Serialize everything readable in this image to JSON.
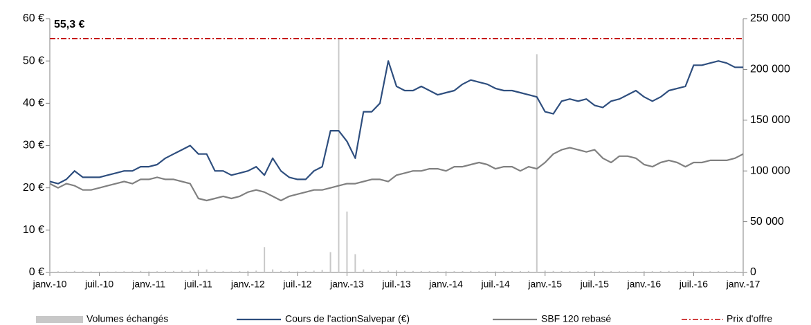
{
  "chart_data": {
    "type": "line",
    "categories": [
      "janv.-10",
      null,
      null,
      null,
      null,
      null,
      "juil.-10",
      null,
      null,
      null,
      null,
      null,
      "janv.-11",
      null,
      null,
      null,
      null,
      null,
      "juil.-11",
      null,
      null,
      null,
      null,
      null,
      "janv.-12",
      null,
      null,
      null,
      null,
      null,
      "juil.-12",
      null,
      null,
      null,
      null,
      null,
      "janv.-13",
      null,
      null,
      null,
      null,
      null,
      "juil.-13",
      null,
      null,
      null,
      null,
      null,
      "janv.-14",
      null,
      null,
      null,
      null,
      null,
      "juil.-14",
      null,
      null,
      null,
      null,
      null,
      "janv.-15",
      null,
      null,
      null,
      null,
      null,
      "juil.-15",
      null,
      null,
      null,
      null,
      null,
      "janv.-16",
      null,
      null,
      null,
      null,
      null,
      "juil.-16",
      null,
      null,
      null,
      null,
      null,
      "janv.-17"
    ],
    "series": [
      {
        "name": "Volumes échangés",
        "kind": "bar",
        "axis": "y2",
        "color": "#c8c8c8",
        "values": [
          1500,
          1200,
          1000,
          1500,
          1200,
          1000,
          800,
          900,
          1000,
          1200,
          1100,
          1500,
          1000,
          1200,
          1400,
          1500,
          1800,
          1600,
          2500,
          3000,
          1500,
          1200,
          1000,
          1300,
          1500,
          1800,
          25000,
          3000,
          1500,
          1200,
          1000,
          1400,
          1800,
          2500,
          20000,
          230000,
          60000,
          18000,
          3000,
          2000,
          1500,
          1800,
          2000,
          1600,
          1500,
          1400,
          1300,
          1200,
          1200,
          1300,
          1400,
          1500,
          1200,
          1100,
          1000,
          1200,
          1300,
          1400,
          1500,
          215000,
          1800,
          1500,
          1400,
          1300,
          1200,
          1300,
          1400,
          1500,
          1300,
          1200,
          1100,
          1000,
          1200,
          1300,
          1400,
          1500,
          1300,
          1200,
          1100,
          1000,
          1200,
          1300,
          1400,
          1200,
          1000
        ]
      },
      {
        "name": "Cours de l'actionSalvepar (€)",
        "kind": "line",
        "color": "#2e4e7e",
        "values": [
          21.5,
          21,
          22,
          24,
          22.5,
          22.5,
          22.5,
          23,
          23.5,
          24,
          24,
          25,
          25,
          25.5,
          27,
          28,
          29,
          30,
          28,
          28,
          24,
          24,
          23,
          23.5,
          24,
          25,
          23,
          27,
          24,
          22.5,
          22,
          22,
          24,
          25,
          33.5,
          33.5,
          31,
          27,
          38,
          38,
          40,
          50,
          44,
          43,
          43,
          44,
          43,
          42,
          42.5,
          43,
          44.5,
          45.5,
          45,
          44.5,
          43.5,
          43,
          43,
          42.5,
          42,
          41.5,
          38,
          37.5,
          40.5,
          41,
          40.5,
          41,
          39.5,
          39,
          40.5,
          41,
          42,
          43,
          41.5,
          40.5,
          41.5,
          43,
          43.5,
          44,
          49,
          49,
          49.5,
          50,
          49.5,
          48.5,
          48.5
        ]
      },
      {
        "name": "SBF 120 rebasé",
        "kind": "line",
        "color": "#808080",
        "values": [
          21,
          20,
          21,
          20.5,
          19.5,
          19.5,
          20,
          20.5,
          21,
          21.5,
          21,
          22,
          22,
          22.5,
          22,
          22,
          21.5,
          21,
          17.5,
          17,
          17.5,
          18,
          17.5,
          18,
          19,
          19.5,
          19,
          18,
          17,
          18,
          18.5,
          19,
          19.5,
          19.5,
          20,
          20.5,
          21,
          21,
          21.5,
          22,
          22,
          21.5,
          23,
          23.5,
          24,
          24,
          24.5,
          24.5,
          24,
          25,
          25,
          25.5,
          26,
          25.5,
          24.5,
          25,
          25,
          24,
          25,
          24.5,
          26,
          28,
          29,
          29.5,
          29,
          28.5,
          29,
          27,
          26,
          27.5,
          27.5,
          27,
          25.5,
          25,
          26,
          26.5,
          26,
          25,
          26,
          26,
          26.5,
          26.5,
          26.5,
          27,
          28
        ]
      }
    ],
    "offer": {
      "name": "Prix d'offre",
      "value": 55.3,
      "label": "55,3 €",
      "color": "#c00000"
    },
    "ylim": [
      0,
      60
    ],
    "yticks": [
      {
        "value": 0,
        "label": "0 €"
      },
      {
        "value": 10,
        "label": "10 €"
      },
      {
        "value": 20,
        "label": "20 €"
      },
      {
        "value": 30,
        "label": "30 €"
      },
      {
        "value": 40,
        "label": "40 €"
      },
      {
        "value": 50,
        "label": "50 €"
      },
      {
        "value": 60,
        "label": "60 €"
      }
    ],
    "y2lim": [
      0,
      250000
    ],
    "y2ticks": [
      0,
      {
        "value": 50000,
        "label": "50 000"
      },
      {
        "value": 100000,
        "label": "100 000"
      },
      {
        "value": 150000,
        "label": "150 000"
      },
      {
        "value": 200000,
        "label": "200 000"
      },
      {
        "value": 250000,
        "label": "250 000"
      }
    ]
  }
}
